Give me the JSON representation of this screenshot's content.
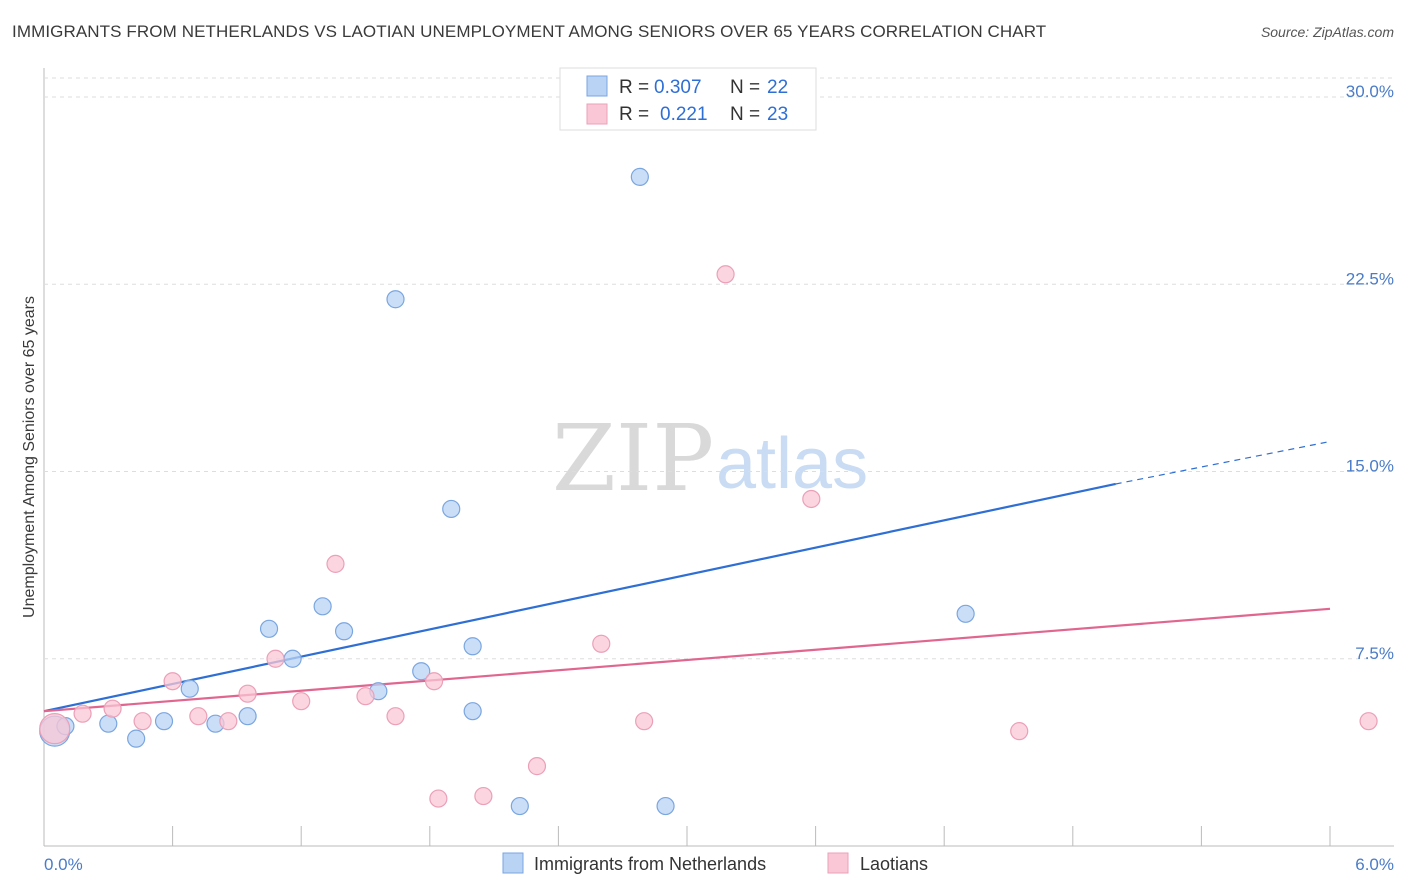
{
  "title": "IMMIGRANTS FROM NETHERLANDS VS LAOTIAN UNEMPLOYMENT AMONG SENIORS OVER 65 YEARS CORRELATION CHART",
  "source": "Source: ZipAtlas.com",
  "watermark": {
    "zip": "ZIP",
    "atlas": "atlas"
  },
  "colors": {
    "blue_fill": "#b9d3f4",
    "blue_stroke": "#7aa6e0",
    "blue_line": "#2f6fd3",
    "pink_fill": "#f9c7d6",
    "pink_stroke": "#eba0b8",
    "pink_line": "#e0668f",
    "grid": "#dddddd",
    "axis_text": "#4a7cc7"
  },
  "legend": {
    "rows": [
      {
        "r_label": "R =",
        "r_value": "0.307",
        "n_label": "N =",
        "n_value": "22"
      },
      {
        "r_label": "R =",
        "r_value": "0.221",
        "n_label": "N =",
        "n_value": "23"
      }
    ]
  },
  "bottom_legend": {
    "items": [
      "Immigrants from Netherlands",
      "Laotians"
    ]
  },
  "chart_data": {
    "type": "scatter",
    "title": "IMMIGRANTS FROM NETHERLANDS VS LAOTIAN UNEMPLOYMENT AMONG SENIORS OVER 65 YEARS CORRELATION CHART",
    "xlabel": "",
    "ylabel": "Unemployment Among Seniors over 65 years",
    "xlim": [
      0,
      6.3
    ],
    "ylim": [
      0,
      31
    ],
    "x_tick_labels": [
      "0.0%",
      "6.0%"
    ],
    "y_ticks": [
      7.5,
      15.0,
      22.5,
      30.0
    ],
    "y_tick_labels": [
      "7.5%",
      "15.0%",
      "22.5%",
      "30.0%"
    ],
    "series": [
      {
        "name": "Immigrants from Netherlands",
        "color": "blue",
        "points": [
          [
            0.05,
            4.6
          ],
          [
            0.3,
            4.9
          ],
          [
            0.43,
            4.3
          ],
          [
            0.56,
            5.0
          ],
          [
            0.68,
            6.3
          ],
          [
            0.8,
            4.9
          ],
          [
            0.95,
            5.2
          ],
          [
            1.05,
            8.7
          ],
          [
            1.16,
            7.5
          ],
          [
            1.3,
            9.6
          ],
          [
            1.4,
            8.6
          ],
          [
            1.56,
            6.2
          ],
          [
            1.64,
            21.9
          ],
          [
            1.76,
            7.0
          ],
          [
            1.9,
            13.5
          ],
          [
            2.0,
            8.0
          ],
          [
            2.0,
            5.4
          ],
          [
            2.22,
            1.6
          ],
          [
            2.78,
            26.8
          ],
          [
            2.9,
            1.6
          ],
          [
            4.3,
            9.3
          ],
          [
            0.1,
            4.8
          ]
        ],
        "trend": {
          "x0": 0.0,
          "y0": 5.4,
          "x1": 5.0,
          "y1": 14.5,
          "dash_to_x": 6.0,
          "dash_to_y": 16.2
        }
      },
      {
        "name": "Laotians",
        "color": "pink",
        "points": [
          [
            0.05,
            4.7
          ],
          [
            0.18,
            5.3
          ],
          [
            0.32,
            5.5
          ],
          [
            0.46,
            5.0
          ],
          [
            0.6,
            6.6
          ],
          [
            0.72,
            5.2
          ],
          [
            0.86,
            5.0
          ],
          [
            0.95,
            6.1
          ],
          [
            1.08,
            7.5
          ],
          [
            1.2,
            5.8
          ],
          [
            1.36,
            11.3
          ],
          [
            1.5,
            6.0
          ],
          [
            1.64,
            5.2
          ],
          [
            1.82,
            6.6
          ],
          [
            1.84,
            1.9
          ],
          [
            2.05,
            2.0
          ],
          [
            2.3,
            3.2
          ],
          [
            2.6,
            8.1
          ],
          [
            2.8,
            5.0
          ],
          [
            3.18,
            22.9
          ],
          [
            3.58,
            13.9
          ],
          [
            4.55,
            4.6
          ],
          [
            6.18,
            5.0
          ]
        ],
        "trend": {
          "x0": 0.0,
          "y0": 5.4,
          "x1": 6.0,
          "y1": 9.5
        }
      }
    ]
  }
}
